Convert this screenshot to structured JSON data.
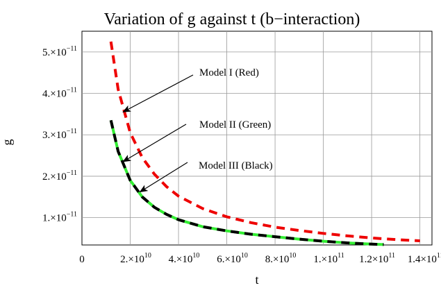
{
  "chart_data": {
    "type": "line",
    "title": "Variation of g against t (b−interaction)",
    "xlabel": "t",
    "ylabel": "g",
    "xlim": [
      0,
      145000000000
    ],
    "ylim": [
      3.4e-12,
      5.5e-11
    ],
    "grid": true,
    "x_ticks": [
      {
        "value": 0,
        "label": "0"
      },
      {
        "value": 20000000000,
        "mantissa": "2.",
        "exp": "10"
      },
      {
        "value": 40000000000,
        "mantissa": "4.",
        "exp": "10"
      },
      {
        "value": 60000000000,
        "mantissa": "6.",
        "exp": "10"
      },
      {
        "value": 80000000000,
        "mantissa": "8.",
        "exp": "10"
      },
      {
        "value": 100000000000,
        "mantissa": "1.",
        "exp": "11"
      },
      {
        "value": 120000000000,
        "mantissa": "1.2",
        "exp": "11"
      },
      {
        "value": 140000000000,
        "mantissa": "1.4",
        "exp": "11"
      }
    ],
    "y_ticks": [
      {
        "value": 1e-11,
        "mantissa": "1.",
        "exp": "−11"
      },
      {
        "value": 2e-11,
        "mantissa": "2.",
        "exp": "−11"
      },
      {
        "value": 3e-11,
        "mantissa": "3.",
        "exp": "−11"
      },
      {
        "value": 4e-11,
        "mantissa": "4.",
        "exp": "−11"
      },
      {
        "value": 5e-11,
        "mantissa": "5.",
        "exp": "−11"
      }
    ],
    "series": [
      {
        "color": "#ee0000",
        "style": "dashed",
        "x": [
          12000000000,
          15000000000,
          20000000000,
          25000000000,
          30000000000,
          35000000000,
          40000000000,
          50000000000,
          60000000000,
          70000000000,
          80000000000,
          90000000000,
          100000000000,
          110000000000,
          120000000000,
          130000000000,
          140000000000
        ],
        "y": [
          5.25e-11,
          4.1e-11,
          3.05e-11,
          2.45e-11,
          2.05e-11,
          1.75e-11,
          1.52e-11,
          1.22e-11,
          1.02e-11,
          8.8e-12,
          7.7e-12,
          6.9e-12,
          6.2e-12,
          5.6e-12,
          5.1e-12,
          4.7e-12,
          4.4e-12
        ]
      },
      {
        "color": "#33ee33",
        "style": "solid",
        "x": [
          12000000000,
          15000000000,
          20000000000,
          25000000000,
          30000000000,
          35000000000,
          40000000000,
          50000000000,
          60000000000,
          70000000000,
          80000000000,
          90000000000,
          100000000000,
          110000000000,
          120000000000,
          125000000000
        ],
        "y": [
          3.35e-11,
          2.6e-11,
          1.9e-11,
          1.5e-11,
          1.25e-11,
          1.08e-11,
          9.5e-12,
          7.8e-12,
          6.8e-12,
          6e-12,
          5.4e-12,
          4.8e-12,
          4.3e-12,
          3.9e-12,
          3.6e-12,
          3.5e-12
        ]
      },
      {
        "color": "#000000",
        "style": "dashed",
        "x": [
          12000000000,
          15000000000,
          20000000000,
          25000000000,
          30000000000,
          35000000000,
          40000000000,
          50000000000,
          60000000000,
          70000000000,
          80000000000,
          90000000000,
          100000000000,
          110000000000,
          120000000000,
          125000000000
        ],
        "y": [
          3.35e-11,
          2.6e-11,
          1.9e-11,
          1.5e-11,
          1.25e-11,
          1.08e-11,
          9.5e-12,
          7.8e-12,
          6.8e-12,
          6e-12,
          5.4e-12,
          4.8e-12,
          4.3e-12,
          3.9e-12,
          3.6e-12,
          3.5e-12
        ]
      }
    ],
    "annotations": [
      {
        "text": "Model I (Red)",
        "arrow_to": {
          "x": 17000000000,
          "y": 3.55e-11
        }
      },
      {
        "text": "Model II (Green)",
        "arrow_to": {
          "x": 17000000000,
          "y": 2.35e-11
        }
      },
      {
        "text": "Model III (Black)",
        "arrow_to": {
          "x": 24000000000,
          "y": 1.62e-11
        }
      }
    ]
  }
}
